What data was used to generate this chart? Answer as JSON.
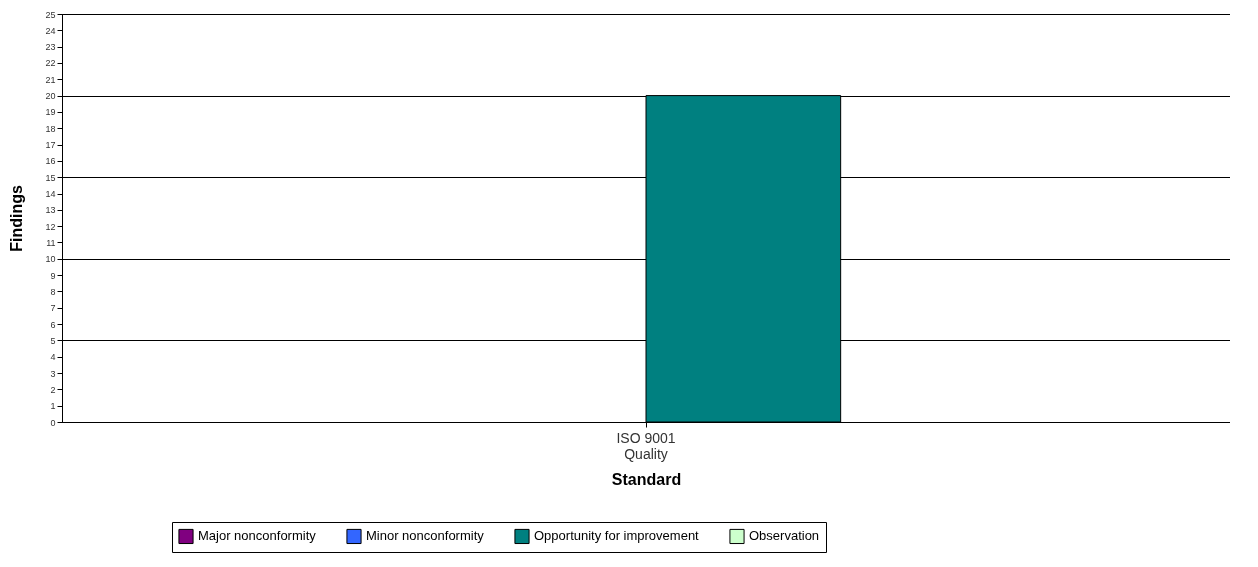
{
  "chart_data": {
    "type": "bar",
    "xlabel": "Standard",
    "ylabel": "Findings",
    "categories": [
      "ISO 9001\nQuality"
    ],
    "series": [
      {
        "name": "Major nonconformity",
        "color": "#800080",
        "values": [
          0
        ]
      },
      {
        "name": "Minor nonconformity",
        "color": "#3366ff",
        "values": [
          0
        ]
      },
      {
        "name": "Opportunity for improvement",
        "color": "#008080",
        "values": [
          20
        ]
      },
      {
        "name": "Observation",
        "color": "#ccffcc",
        "values": [
          0
        ]
      }
    ],
    "ylim": [
      0,
      25
    ],
    "yticks": [
      0,
      1,
      2,
      3,
      4,
      5,
      6,
      7,
      8,
      9,
      10,
      11,
      12,
      13,
      14,
      15,
      16,
      17,
      18,
      19,
      20,
      21,
      22,
      23,
      24,
      25
    ],
    "grid": "y",
    "legend": "bottom"
  }
}
